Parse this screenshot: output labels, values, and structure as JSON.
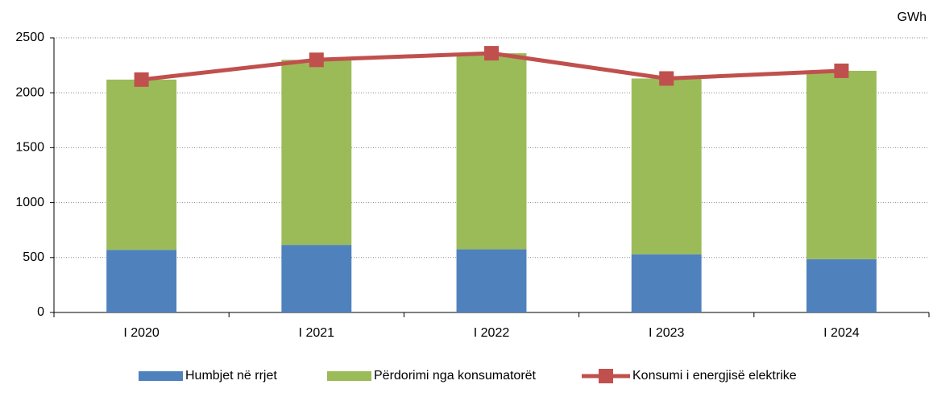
{
  "chart_data": {
    "type": "stacked-bar-line",
    "unit": "GWh",
    "categories": [
      "I 2020",
      "I 2021",
      "I 2022",
      "I 2023",
      "I 2024"
    ],
    "series": [
      {
        "name": "Humbjet në rrjet",
        "color": "#4f81bd",
        "kind": "bar",
        "values": [
          570,
          615,
          575,
          530,
          485
        ]
      },
      {
        "name": "Përdorimi nga konsumatorët",
        "color": "#9bbb59",
        "kind": "bar",
        "values": [
          1550,
          1685,
          1785,
          1600,
          1715
        ]
      },
      {
        "name": "Konsumi i energjisë elektrike",
        "color": "#c0504d",
        "kind": "line",
        "values": [
          2120,
          2300,
          2360,
          2130,
          2200
        ]
      }
    ],
    "ylim": [
      0,
      2500
    ],
    "yticks": [
      0,
      500,
      1000,
      1500,
      2000,
      2500
    ],
    "grid": true,
    "legend": "bottom"
  }
}
